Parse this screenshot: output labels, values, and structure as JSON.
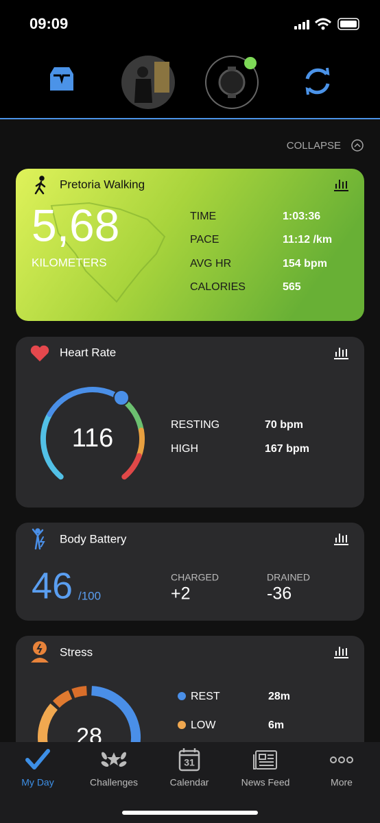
{
  "status_bar": {
    "time": "09:09"
  },
  "collapse_button": "COLLAPSE",
  "activity_card": {
    "title": "Pretoria Walking",
    "distance": "5,68",
    "unit": "KILOMETERS",
    "stats": [
      {
        "label": "TIME",
        "value": "1:03:36"
      },
      {
        "label": "PACE",
        "value": "11:12 /km"
      },
      {
        "label": "AVG HR",
        "value": "154 bpm"
      },
      {
        "label": "CALORIES",
        "value": "565"
      }
    ]
  },
  "heart_rate_card": {
    "title": "Heart Rate",
    "current": "116",
    "stats": [
      {
        "label": "RESTING",
        "value": "70 bpm"
      },
      {
        "label": "HIGH",
        "value": "167 bpm"
      }
    ]
  },
  "body_battery_card": {
    "title": "Body Battery",
    "level": "46",
    "max": "/100",
    "stats": [
      {
        "label": "CHARGED",
        "value": "+2"
      },
      {
        "label": "DRAINED",
        "value": "-36"
      }
    ]
  },
  "stress_card": {
    "title": "Stress",
    "current": "28",
    "legend": [
      {
        "label": "REST",
        "value": "28m"
      },
      {
        "label": "LOW",
        "value": "6m"
      }
    ]
  },
  "tab_bar": {
    "calendar_day": "31",
    "tabs": [
      "My Day",
      "Challenges",
      "Calendar",
      "News Feed",
      "More"
    ]
  }
}
